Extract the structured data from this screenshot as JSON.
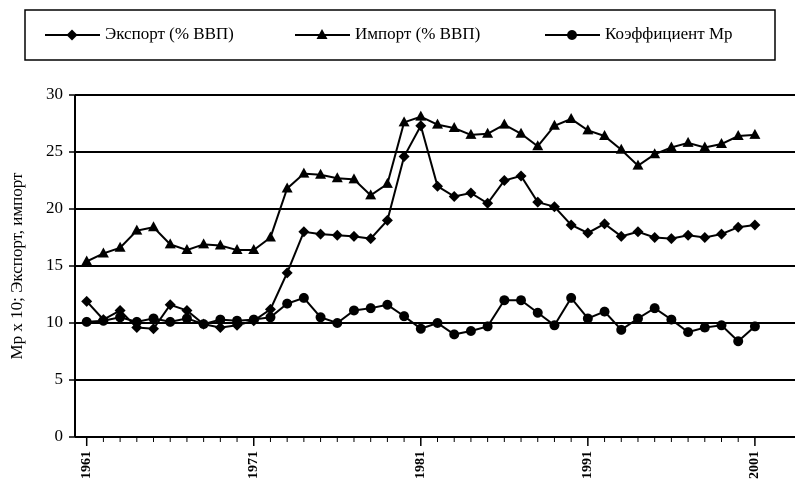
{
  "chart_data": {
    "type": "line",
    "y_label": "Мр х 10;  Экспорт, импорт",
    "x": [
      1961,
      1962,
      1963,
      1964,
      1965,
      1966,
      1967,
      1968,
      1969,
      1970,
      1971,
      1972,
      1973,
      1974,
      1975,
      1976,
      1977,
      1978,
      1979,
      1980,
      1981,
      1982,
      1983,
      1984,
      1985,
      1986,
      1987,
      1988,
      1989,
      1990,
      1991,
      1992,
      1993,
      1994,
      1995,
      1996,
      1997,
      1998,
      1999,
      2000,
      2001
    ],
    "series": [
      {
        "name": "Экспорт (% ВВП)",
        "color": "#000000",
        "marker": "diamond",
        "values": [
          11.9,
          10.3,
          11.1,
          9.6,
          9.5,
          11.6,
          11.1,
          9.9,
          9.6,
          9.8,
          10.2,
          11.2,
          14.4,
          18.0,
          17.8,
          17.7,
          17.6,
          17.4,
          19.0,
          24.6,
          27.3,
          22.0,
          21.1,
          21.4,
          20.5,
          22.5,
          22.9,
          20.6,
          20.2,
          18.6,
          17.9,
          18.7,
          17.6,
          18.0,
          17.5,
          17.4,
          17.7,
          17.5,
          17.8,
          18.4,
          18.6
        ]
      },
      {
        "name": "Импорт (% ВВП)",
        "color": "#000000",
        "marker": "triangle",
        "values": [
          15.4,
          16.1,
          16.6,
          18.1,
          18.4,
          16.9,
          16.4,
          16.9,
          16.8,
          16.4,
          16.4,
          17.5,
          21.8,
          23.1,
          23.0,
          22.7,
          22.6,
          21.2,
          22.2,
          27.6,
          28.1,
          27.4,
          27.1,
          26.5,
          26.6,
          27.4,
          26.6,
          25.5,
          27.3,
          27.9,
          26.9,
          26.4,
          25.2,
          23.8,
          24.8,
          25.4,
          25.8,
          25.4,
          25.7,
          26.4,
          26.5
        ]
      },
      {
        "name": "Коэффициент Мр",
        "color": "#000000",
        "marker": "circle",
        "values": [
          10.1,
          10.2,
          10.5,
          10.1,
          10.4,
          10.1,
          10.4,
          9.9,
          10.3,
          10.2,
          10.3,
          10.5,
          11.7,
          12.2,
          10.5,
          10.0,
          11.1,
          11.3,
          11.6,
          10.6,
          9.5,
          10.0,
          9.0,
          9.3,
          9.7,
          12.0,
          12.0,
          10.9,
          9.8,
          12.2,
          10.4,
          11.0,
          9.4,
          10.4,
          11.3,
          10.3,
          9.2,
          9.6,
          9.8,
          8.4,
          9.7
        ]
      }
    ],
    "xlim": [
      1960.3,
      2003.4
    ],
    "xticks": [
      1961,
      1971,
      1981,
      1991,
      2001
    ],
    "ylim": [
      0,
      30
    ],
    "yticks": [
      0,
      5,
      10,
      15,
      20,
      25,
      30
    ],
    "grid": true,
    "legend": "top"
  }
}
